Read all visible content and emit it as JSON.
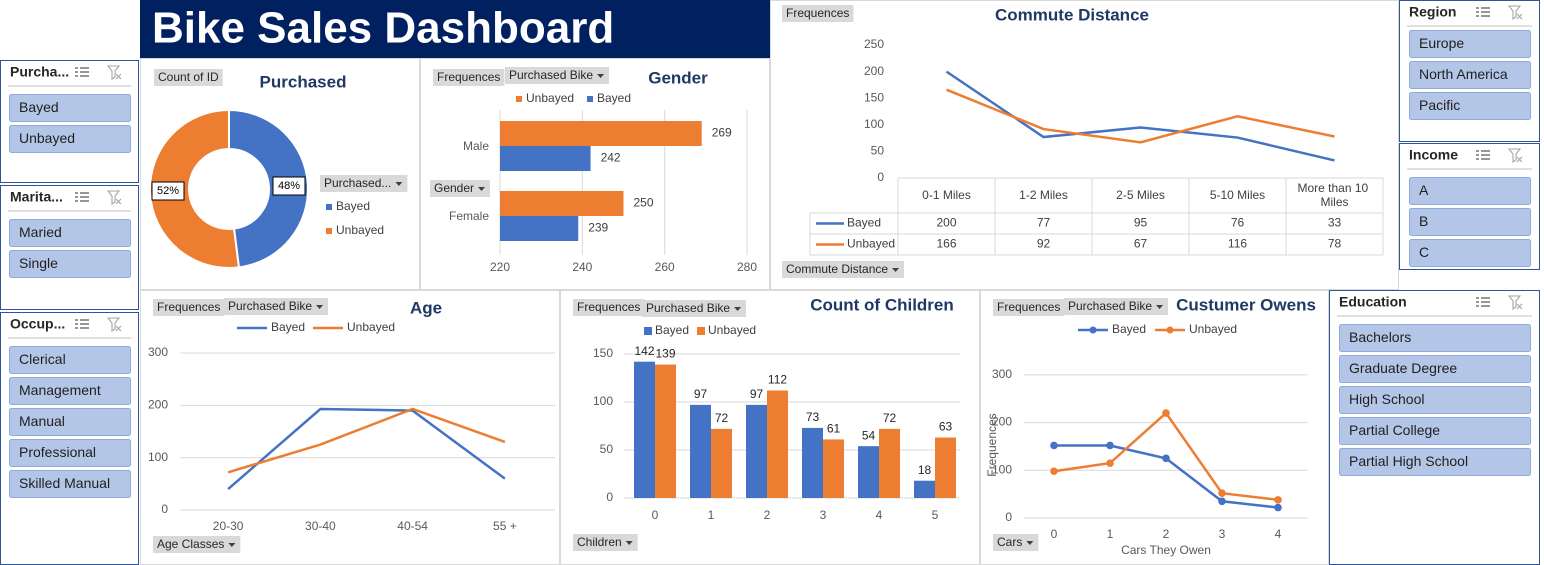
{
  "title": "Bike Sales Dashboard",
  "slicers": [
    {
      "title": "Purcha...",
      "items": [
        "Bayed",
        "Unbayed"
      ]
    },
    {
      "title": "Marita...",
      "items": [
        "Maried",
        "Single"
      ]
    },
    {
      "title": "Occup...",
      "items": [
        "Clerical",
        "Management",
        "Manual",
        "Professional",
        "Skilled Manual"
      ]
    },
    {
      "title": "Region",
      "items": [
        "Europe",
        "North America",
        "Pacific"
      ]
    },
    {
      "title": "Income",
      "items": [
        "A",
        "B",
        "C"
      ]
    },
    {
      "title": "Education",
      "items": [
        "Bachelors",
        "Graduate Degree",
        "High School",
        "Partial College",
        "Partial High School"
      ]
    }
  ],
  "chart_data": [
    {
      "type": "pie",
      "title": "Purchased",
      "buttons": [
        "Count of ID",
        "Purchased..."
      ],
      "categories": [
        "Bayed",
        "Unbayed"
      ],
      "values": [
        48,
        52
      ],
      "value_labels": [
        "48%",
        "52%"
      ],
      "colors": [
        "#4472c4",
        "#ed7d31"
      ]
    },
    {
      "type": "bar",
      "orientation": "horizontal",
      "title": "Gender",
      "buttons": [
        "Frequences",
        "Purchased Bike",
        "Gender"
      ],
      "categories": [
        "Male",
        "Female"
      ],
      "series": [
        {
          "name": "Unbayed",
          "color": "#ed7d31",
          "values": [
            269,
            250
          ]
        },
        {
          "name": "Bayed",
          "color": "#4472c4",
          "values": [
            242,
            239
          ]
        }
      ],
      "xlim": [
        220,
        280
      ],
      "xticks": [
        220,
        240,
        260,
        280
      ],
      "grid": true
    },
    {
      "type": "line",
      "title": "Commute Distance",
      "buttons": [
        "Frequences",
        "Commute Distance"
      ],
      "categories": [
        "0-1 Miles",
        "1-2 Miles",
        "2-5 Miles",
        "5-10 Miles",
        "More than 10 Miles"
      ],
      "series": [
        {
          "name": "Bayed",
          "color": "#4472c4",
          "values": [
            200,
            77,
            95,
            76,
            33
          ]
        },
        {
          "name": "Unbayed",
          "color": "#ed7d31",
          "values": [
            166,
            92,
            67,
            116,
            78
          ]
        }
      ],
      "ylim": [
        0,
        250
      ],
      "yticks": [
        0,
        50,
        100,
        150,
        200,
        250
      ],
      "grid": false,
      "data_table": true
    },
    {
      "type": "line",
      "title": "Age",
      "buttons": [
        "Frequences",
        "Purchased Bike",
        "Age Classes"
      ],
      "categories": [
        "20-30",
        "30-40",
        "40-54",
        "55 +"
      ],
      "series": [
        {
          "name": "Bayed",
          "color": "#4472c4",
          "values": [
            40,
            193,
            190,
            60
          ]
        },
        {
          "name": "Unbayed",
          "color": "#ed7d31",
          "values": [
            72,
            125,
            193,
            130
          ]
        }
      ],
      "ylim": [
        0,
        300
      ],
      "yticks": [
        0,
        100,
        200,
        300
      ],
      "grid": true
    },
    {
      "type": "bar",
      "orientation": "vertical",
      "title": "Count of Children",
      "buttons": [
        "Frequences",
        "Purchased Bike",
        "Children"
      ],
      "categories": [
        "0",
        "1",
        "2",
        "3",
        "4",
        "5"
      ],
      "series": [
        {
          "name": "Bayed",
          "color": "#4472c4",
          "values": [
            142,
            97,
            97,
            73,
            54,
            18
          ]
        },
        {
          "name": "Unbayed",
          "color": "#ed7d31",
          "values": [
            139,
            72,
            112,
            61,
            72,
            63
          ]
        }
      ],
      "ylim": [
        0,
        150
      ],
      "yticks": [
        0,
        50,
        100,
        150
      ],
      "grid": true,
      "data_labels": true
    },
    {
      "type": "line",
      "title": "Custumer Owens",
      "buttons": [
        "Frequences",
        "Purchased Bike",
        "Cars"
      ],
      "categories": [
        "0",
        "1",
        "2",
        "3",
        "4"
      ],
      "series": [
        {
          "name": "Bayed",
          "color": "#4472c4",
          "values": [
            152,
            152,
            125,
            35,
            22
          ]
        },
        {
          "name": "Unbayed",
          "color": "#ed7d31",
          "values": [
            98,
            115,
            220,
            52,
            38
          ]
        }
      ],
      "ylim": [
        0,
        350
      ],
      "yticks": [
        0,
        100,
        200,
        300
      ],
      "grid": true,
      "markers": true,
      "x_label": "Cars They Owen",
      "y_label": "Frequences"
    }
  ]
}
